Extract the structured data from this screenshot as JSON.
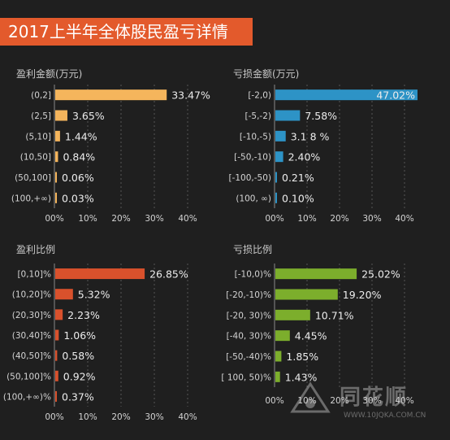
{
  "title": "2017上半年全体股民盈亏详情",
  "watermark": {
    "brand": "同花顺",
    "url": "WWW.10JQKA.COM.CN"
  },
  "colors": {
    "background": "#1f1f1f",
    "title_bar": "#e35a2c",
    "profit_amount": "#f5b55c",
    "loss_amount": "#2d93c6",
    "profit_ratio": "#d9512c",
    "loss_ratio": "#7cae2c"
  },
  "chart_data": [
    {
      "type": "bar",
      "orientation": "horizontal",
      "title": "盈利金额(万元)",
      "categories": [
        "(0,2]",
        "(2,5]",
        "(5,10]",
        "(10,50]",
        "(50,100]",
        "(100,+∞)"
      ],
      "values": [
        33.47,
        3.65,
        1.44,
        0.84,
        0.06,
        0.03
      ],
      "value_labels": [
        "33.47%",
        "3.65%",
        "1.44%",
        "0.84%",
        "0.06%",
        "0.03%"
      ],
      "xlim": [
        0,
        40
      ],
      "xticks": [
        "00%",
        "10%",
        "20%",
        "30%",
        "40%"
      ],
      "color": "#f5b55c"
    },
    {
      "type": "bar",
      "orientation": "horizontal",
      "title": "亏损金额(万元)",
      "categories": [
        "[-2,0)",
        "[-5,-2)",
        "[-10,-5)",
        "[-50,-10)",
        "[-100,-50)",
        "(100, ∞)"
      ],
      "values": [
        47.02,
        7.58,
        3.18,
        2.4,
        0.21,
        0.1
      ],
      "value_labels": [
        "47.02%",
        "7.58%",
        "3.1 8 %",
        "2.40%",
        "0.21%",
        "0.10%"
      ],
      "xlim": [
        0,
        40
      ],
      "xticks": [
        "00%",
        "10%",
        "20%",
        "30%",
        "40%"
      ],
      "color": "#2d93c6"
    },
    {
      "type": "bar",
      "orientation": "horizontal",
      "title": "盈利比例",
      "categories": [
        "[0,10]%",
        "(10,20]%",
        "(20,30]%",
        "(30,40]%",
        "(40,50]%",
        "(50,100]%",
        "(100,+∞)%"
      ],
      "values": [
        26.85,
        5.32,
        2.23,
        1.06,
        0.58,
        0.92,
        0.37
      ],
      "value_labels": [
        "26.85%",
        "5.32%",
        "2.23%",
        "1.06%",
        "0.58%",
        "0.92%",
        "0.37%"
      ],
      "xlim": [
        0,
        40
      ],
      "xticks": [
        "00%",
        "10%",
        "20%",
        "30%",
        "40%"
      ],
      "color": "#d9512c"
    },
    {
      "type": "bar",
      "orientation": "horizontal",
      "title": "亏损比例",
      "categories": [
        "[-10,0)%",
        "[-20,-10)%",
        "[-20, 30)%",
        "[-40, 30)%",
        "[-50,-40)%",
        "[ 100, 50)%"
      ],
      "values": [
        25.02,
        19.2,
        10.71,
        4.45,
        1.85,
        1.43
      ],
      "value_labels": [
        "25.02%",
        "19.20%",
        "10.71%",
        "4.45%",
        "1.85%",
        "1.43%"
      ],
      "xlim": [
        0,
        40
      ],
      "xticks": [
        "00%",
        "10%",
        "20%",
        "30%",
        "40%"
      ],
      "color": "#7cae2c"
    }
  ]
}
